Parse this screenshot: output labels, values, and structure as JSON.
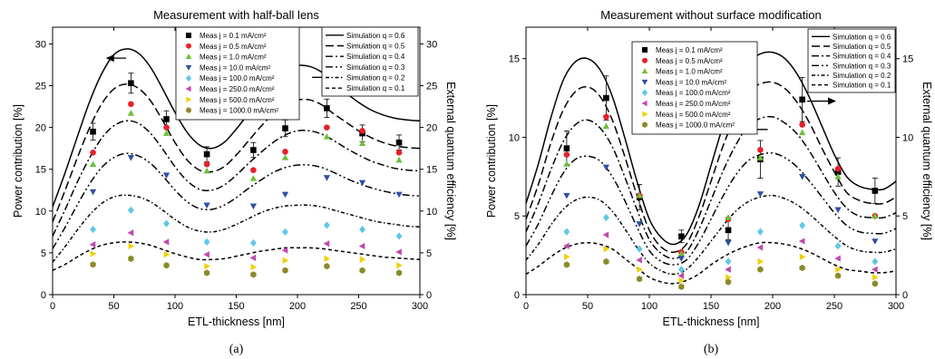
{
  "chart_data": [
    {
      "type": "line",
      "panel_label": "(a)",
      "title": "Measurement with half-ball lens",
      "xlabel": "ETL-thickness [nm]",
      "ylabel": "Power contribution [%]",
      "y2label": "External quantum efficiency [%]",
      "xlim": [
        0,
        300
      ],
      "ylim": [
        0,
        32
      ],
      "x_ticks": [
        0,
        50,
        100,
        150,
        200,
        250,
        300
      ],
      "y_ticks": [
        0,
        5,
        10,
        15,
        20,
        25,
        30
      ],
      "arrows": [
        {
          "from": [
            60,
            28.3
          ],
          "to": [
            45,
            28.3
          ],
          "points_to": "left-axis"
        },
        {
          "from": [
            212,
            26.0
          ],
          "to": [
            232,
            26.0
          ],
          "points_to": "right-axis"
        }
      ],
      "meas_legend_placement": "top-center",
      "sim_legend_placement": "top-right",
      "simulation_x": [
        0,
        10,
        20,
        30,
        40,
        50,
        60,
        70,
        80,
        90,
        100,
        110,
        120,
        130,
        140,
        150,
        160,
        170,
        180,
        190,
        200,
        210,
        220,
        230,
        240,
        250,
        260,
        270,
        280,
        290,
        300
      ],
      "simulations": [
        {
          "name": "Simulation q = 0.6",
          "dash": "solid",
          "values": [
            10.5,
            14.5,
            18.8,
            23.0,
            26.4,
            28.7,
            29.4,
            28.9,
            27.2,
            24.6,
            21.8,
            19.4,
            17.9,
            17.5,
            18.2,
            19.8,
            21.7,
            23.7,
            25.5,
            26.8,
            27.4,
            27.3,
            26.6,
            25.3,
            24.1,
            23.0,
            22.1,
            21.5,
            21.1,
            20.9,
            20.8
          ]
        },
        {
          "name": "Simulation q = 0.5",
          "dash": "longdash",
          "values": [
            8.7,
            12.4,
            16.3,
            19.9,
            22.8,
            24.6,
            25.2,
            24.7,
            23.2,
            20.8,
            18.2,
            16.1,
            14.9,
            14.7,
            15.3,
            16.7,
            18.4,
            20.1,
            21.6,
            22.8,
            23.3,
            23.3,
            22.7,
            21.6,
            20.6,
            19.6,
            18.8,
            18.2,
            17.8,
            17.6,
            17.5
          ]
        },
        {
          "name": "Simulation q = 0.4",
          "dash": "dashdot",
          "values": [
            7.0,
            10.1,
            13.4,
            16.3,
            18.7,
            20.2,
            20.8,
            20.5,
            19.3,
            17.4,
            15.3,
            13.6,
            12.6,
            12.5,
            13.1,
            14.3,
            15.7,
            17.0,
            18.2,
            19.1,
            19.6,
            19.6,
            19.2,
            18.4,
            17.5,
            16.7,
            16.0,
            15.5,
            15.1,
            14.9,
            14.8
          ]
        },
        {
          "name": "Simulation q = 0.3",
          "dash": "dashdotdot",
          "values": [
            5.5,
            8.0,
            10.7,
            13.2,
            15.2,
            16.4,
            16.9,
            16.6,
            15.7,
            14.2,
            12.5,
            11.1,
            10.3,
            10.2,
            10.7,
            11.6,
            12.7,
            13.7,
            14.6,
            15.2,
            15.5,
            15.5,
            15.2,
            14.6,
            13.9,
            13.3,
            12.8,
            12.4,
            12.1,
            11.9,
            11.8
          ]
        },
        {
          "name": "Simulation q = 0.2",
          "dash": "shortdashdot",
          "values": [
            3.9,
            5.7,
            7.7,
            9.5,
            10.9,
            11.7,
            11.9,
            11.7,
            11.1,
            10.1,
            9.0,
            8.1,
            7.6,
            7.5,
            7.8,
            8.4,
            9.1,
            9.8,
            10.3,
            10.6,
            10.7,
            10.7,
            10.5,
            10.1,
            9.7,
            9.3,
            8.9,
            8.6,
            8.4,
            8.2,
            8.1
          ]
        },
        {
          "name": "Simulation q = 0.1",
          "dash": "shortdash",
          "values": [
            2.9,
            3.6,
            4.5,
            5.3,
            5.9,
            6.2,
            6.3,
            6.2,
            5.9,
            5.4,
            4.9,
            4.5,
            4.2,
            4.2,
            4.3,
            4.6,
            4.9,
            5.2,
            5.4,
            5.6,
            5.6,
            5.6,
            5.5,
            5.3,
            5.1,
            4.9,
            4.7,
            4.5,
            4.4,
            4.3,
            4.2
          ]
        }
      ],
      "measurement_x": [
        33,
        64,
        93,
        126,
        164,
        190,
        224,
        253,
        283
      ],
      "measurements": [
        {
          "name": "Meas j = 0.1 mA/cm²",
          "marker": "square",
          "color": "#000000",
          "values": [
            19.5,
            25.3,
            21.0,
            16.8,
            17.3,
            19.9,
            22.3,
            19.3,
            18.2
          ],
          "errors": [
            1.0,
            1.2,
            1.0,
            0.9,
            0.9,
            1.0,
            1.1,
            1.0,
            0.9
          ]
        },
        {
          "name": "Meas j = 0.5 mA/cm²",
          "marker": "circle",
          "color": "#e8202a",
          "values": [
            17.0,
            22.8,
            20.0,
            15.6,
            14.9,
            17.1,
            20.0,
            19.6,
            17.0
          ]
        },
        {
          "name": "Meas j = 1.0 mA/cm²",
          "marker": "triangle-up",
          "color": "#6dbf3a",
          "values": [
            15.6,
            21.7,
            19.3,
            14.8,
            13.9,
            16.4,
            18.9,
            18.1,
            16.1
          ]
        },
        {
          "name": "Meas j = 10.0 mA/cm²",
          "marker": "triangle-down",
          "color": "#2f4fa8",
          "values": [
            12.3,
            16.4,
            14.3,
            10.7,
            10.6,
            12.0,
            14.0,
            13.4,
            12.0
          ]
        },
        {
          "name": "Meas j = 100.0 mA/cm²",
          "marker": "diamond",
          "color": "#5ec8e8",
          "values": [
            7.8,
            10.1,
            8.5,
            6.3,
            6.2,
            7.5,
            8.3,
            7.8,
            7.0
          ]
        },
        {
          "name": "Meas j = 250.0 mA/cm²",
          "marker": "triangle-left",
          "color": "#c048b0",
          "values": [
            6.0,
            7.4,
            6.3,
            4.8,
            4.4,
            5.3,
            6.1,
            5.8,
            5.1
          ]
        },
        {
          "name": "Meas j = 500.0 mA/cm²",
          "marker": "triangle-right",
          "color": "#f0d000",
          "values": [
            4.9,
            5.8,
            4.8,
            3.4,
            3.3,
            4.1,
            4.3,
            4.2,
            3.5
          ]
        },
        {
          "name": "Meas j = 1000.0 mA/cm²",
          "marker": "hexagon",
          "color": "#8a8a2a",
          "values": [
            3.6,
            4.3,
            3.5,
            2.6,
            2.4,
            2.9,
            3.4,
            2.9,
            2.6
          ]
        }
      ]
    },
    {
      "type": "line",
      "panel_label": "(b)",
      "title": "Measurement without surface modification",
      "xlabel": "ETL-thickness [nm]",
      "ylabel": "Power contribution [%]",
      "y2label": "External quantum efficiency [%]",
      "xlim": [
        0,
        300
      ],
      "ylim": [
        0,
        17
      ],
      "x_ticks": [
        0,
        50,
        100,
        150,
        200,
        250,
        300
      ],
      "y_ticks": [
        0,
        5,
        10,
        15
      ],
      "arrows": [
        {
          "from": [
            196,
            10.5
          ],
          "to": [
            176,
            10.5
          ],
          "points_to": "left-axis"
        },
        {
          "from": [
            228,
            12.3
          ],
          "to": [
            250,
            12.3
          ],
          "points_to": "right-axis"
        }
      ],
      "meas_legend_placement": "top-center",
      "sim_legend_placement": "top-right",
      "simulation_x": [
        0,
        10,
        20,
        30,
        40,
        50,
        60,
        70,
        80,
        90,
        100,
        110,
        120,
        130,
        140,
        150,
        160,
        170,
        180,
        190,
        200,
        210,
        220,
        230,
        240,
        250,
        260,
        270,
        280,
        290,
        300
      ],
      "simulations": [
        {
          "name": "Simulation q = 0.6",
          "dash": "solid",
          "values": [
            5.8,
            8.3,
            11.2,
            13.6,
            14.8,
            15.0,
            14.3,
            12.6,
            10.0,
            7.2,
            4.8,
            3.6,
            3.2,
            3.8,
            5.6,
            8.2,
            10.8,
            13.0,
            14.7,
            15.3,
            15.4,
            15.0,
            14.0,
            12.5,
            10.7,
            8.9,
            7.5,
            6.9,
            6.7,
            6.7,
            7.2
          ]
        },
        {
          "name": "Simulation q = 0.5",
          "dash": "longdash",
          "values": [
            4.8,
            7.0,
            9.6,
            11.7,
            12.9,
            13.2,
            12.6,
            11.1,
            8.8,
            6.3,
            4.1,
            3.0,
            2.7,
            3.2,
            4.9,
            7.2,
            9.5,
            11.4,
            12.9,
            13.4,
            13.5,
            13.1,
            12.2,
            10.9,
            9.3,
            7.8,
            6.5,
            6.0,
            5.8,
            5.8,
            6.2
          ]
        },
        {
          "name": "Simulation q = 0.4",
          "dash": "dashdot",
          "values": [
            4.0,
            5.8,
            7.9,
            9.7,
            10.8,
            11.1,
            10.6,
            9.4,
            7.5,
            5.4,
            3.5,
            2.6,
            2.3,
            2.7,
            4.1,
            6.0,
            7.9,
            9.5,
            10.7,
            11.2,
            11.3,
            10.9,
            10.2,
            9.1,
            7.8,
            6.5,
            5.5,
            5.0,
            4.9,
            4.9,
            5.2
          ]
        },
        {
          "name": "Simulation q = 0.3",
          "dash": "dashdotdot",
          "values": [
            3.1,
            4.5,
            6.2,
            7.7,
            8.6,
            8.8,
            8.5,
            7.5,
            6.0,
            4.3,
            2.8,
            2.1,
            1.9,
            2.2,
            3.3,
            4.8,
            6.3,
            7.6,
            8.5,
            8.9,
            9.0,
            8.7,
            8.1,
            7.2,
            6.2,
            5.2,
            4.4,
            4.0,
            3.9,
            3.9,
            4.2
          ]
        },
        {
          "name": "Simulation q = 0.2",
          "dash": "shortdashdot",
          "values": [
            2.2,
            3.2,
            4.4,
            5.4,
            6.0,
            6.2,
            6.0,
            5.3,
            4.2,
            3.0,
            2.0,
            1.5,
            1.3,
            1.6,
            2.4,
            3.4,
            4.4,
            5.3,
            5.9,
            6.2,
            6.3,
            6.1,
            5.7,
            5.1,
            4.4,
            3.7,
            3.1,
            2.8,
            2.7,
            2.7,
            2.9
          ]
        },
        {
          "name": "Simulation q = 0.1",
          "dash": "shortdash",
          "values": [
            1.3,
            1.8,
            2.4,
            2.9,
            3.2,
            3.3,
            3.2,
            2.9,
            2.3,
            1.7,
            1.1,
            0.8,
            0.7,
            0.9,
            1.3,
            1.9,
            2.4,
            2.8,
            3.1,
            3.3,
            3.3,
            3.2,
            3.0,
            2.7,
            2.3,
            1.9,
            1.6,
            1.5,
            1.4,
            1.4,
            1.5
          ]
        }
      ],
      "measurement_x": [
        33,
        65,
        92,
        126,
        164,
        190,
        224,
        253,
        283
      ],
      "measurements": [
        {
          "name": "Meas j = 0.1 mA/cm²",
          "marker": "square",
          "color": "#000000",
          "values": [
            9.3,
            12.5,
            6.2,
            3.7,
            4.1,
            8.6,
            12.4,
            7.8,
            6.6
          ],
          "errors": [
            1.1,
            1.4,
            0.8,
            0.4,
            0.6,
            1.2,
            1.4,
            0.9,
            0.8
          ]
        },
        {
          "name": "Meas j = 0.5 mA/cm²",
          "marker": "circle",
          "color": "#e8202a",
          "values": [
            8.9,
            11.3,
            6.3,
            2.7,
            4.8,
            9.2,
            10.8,
            8.0,
            5.0
          ]
        },
        {
          "name": "Meas j = 1.0 mA/cm²",
          "marker": "triangle-up",
          "color": "#6dbf3a",
          "values": [
            8.3,
            10.7,
            6.3,
            2.6,
            4.9,
            8.7,
            10.3,
            7.5,
            5.0
          ]
        },
        {
          "name": "Meas j = 10.0 mA/cm²",
          "marker": "triangle-down",
          "color": "#2f4fa8",
          "values": [
            6.3,
            8.1,
            4.5,
            2.3,
            3.3,
            6.4,
            7.5,
            5.4,
            3.4
          ]
        },
        {
          "name": "Meas j = 100.0 mA/cm²",
          "marker": "diamond",
          "color": "#5ec8e8",
          "values": [
            4.0,
            4.9,
            2.9,
            1.6,
            2.1,
            4.0,
            4.4,
            3.1,
            2.1
          ]
        },
        {
          "name": "Meas j = 250.0 mA/cm²",
          "marker": "triangle-left",
          "color": "#c048b0",
          "values": [
            3.1,
            3.8,
            2.2,
            1.2,
            1.6,
            3.0,
            3.4,
            2.3,
            1.6
          ]
        },
        {
          "name": "Meas j = 500.0 mA/cm²",
          "marker": "triangle-right",
          "color": "#f0d000",
          "values": [
            2.4,
            2.9,
            1.6,
            0.9,
            1.1,
            2.1,
            2.4,
            1.6,
            1.1
          ]
        },
        {
          "name": "Meas j = 1000.0 mA/cm²",
          "marker": "hexagon",
          "color": "#8a8a2a",
          "values": [
            1.9,
            2.1,
            1.0,
            0.5,
            0.8,
            1.6,
            1.7,
            1.2,
            0.7
          ]
        }
      ]
    }
  ]
}
